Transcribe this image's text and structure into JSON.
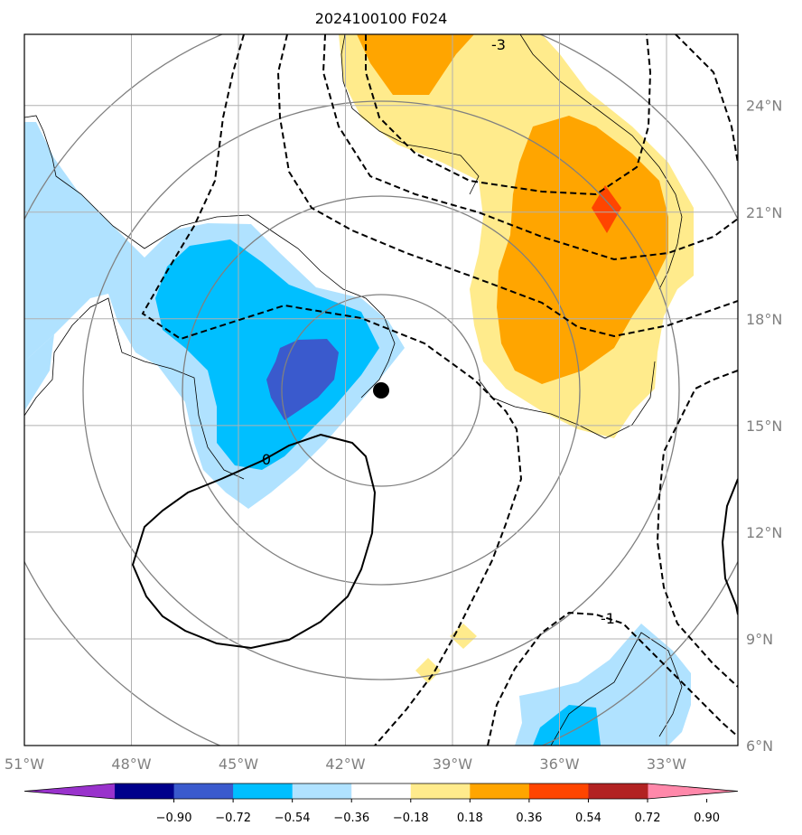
{
  "chart_data": {
    "type": "map",
    "title": "2024100100 F024",
    "x_tick_labels": [
      "51°W",
      "48°W",
      "45°W",
      "42°W",
      "39°W",
      "36°W",
      "33°W"
    ],
    "y_tick_labels": [
      "6°N",
      "9°N",
      "12°N",
      "15°N",
      "18°N",
      "21°N",
      "24°N"
    ],
    "lon_range": [
      -51,
      -31
    ],
    "lat_range": [
      6,
      26
    ],
    "colorbar": {
      "levels": [
        -0.9,
        -0.72,
        -0.54,
        -0.36,
        -0.18,
        0.18,
        0.36,
        0.54,
        0.72,
        0.9
      ],
      "labels": [
        "−0.90",
        "−0.72",
        "−0.54",
        "−0.36",
        "−0.18",
        "0.18",
        "0.36",
        "0.54",
        "0.72",
        "0.90"
      ],
      "colors": [
        "#9932cc",
        "#00008b",
        "#3a5acd",
        "#00bfff",
        "#b0e2ff",
        "#ffffff",
        "#ffeb8c",
        "#ffa500",
        "#ff4500",
        "#b22222",
        "#ff88aa"
      ],
      "extend": "both"
    },
    "contour_labels": [
      "0",
      "-3",
      "-1"
    ],
    "center_marker": {
      "lon": -41.7,
      "lat": 15.9
    },
    "grid": true
  }
}
